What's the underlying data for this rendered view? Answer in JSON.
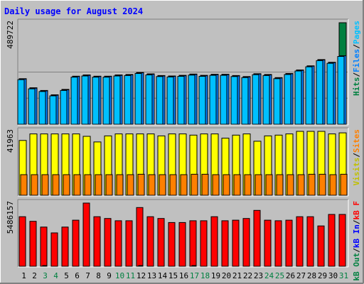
{
  "chart_data": {
    "type": "bar",
    "title": "Daily usage for August 2024",
    "days": [
      "1",
      "2",
      "3",
      "4",
      "5",
      "6",
      "7",
      "8",
      "9",
      "10",
      "11",
      "12",
      "13",
      "14",
      "15",
      "16",
      "17",
      "18",
      "19",
      "20",
      "21",
      "22",
      "23",
      "24",
      "25",
      "26",
      "27",
      "28",
      "29",
      "30",
      "31"
    ],
    "weekend_days": [
      "3",
      "4",
      "10",
      "11",
      "17",
      "18",
      "24",
      "25",
      "31"
    ],
    "colors": {
      "title": "#0000ff",
      "background": "#c0c0c0",
      "border_light": "#ffffff",
      "border_dark": "#808080",
      "pages": "#00c0ff",
      "files": "#0080ff",
      "hits": "#008040",
      "visits": "#ffff00",
      "sites": "#ff8000",
      "kbytes": "#ff0000",
      "kb_in": "#0000ff",
      "kb_out": "#008040",
      "weekday_label": "#000000",
      "weekend_label": "#008040",
      "gridline": "#808080"
    },
    "panels": [
      {
        "name": "hits-panel",
        "max_label": "489722",
        "max_value": 489722,
        "legend": [
          {
            "text": "Hits",
            "color": "#008040"
          },
          {
            "text": "/",
            "color": "#000000"
          },
          {
            "text": "Files",
            "color": "#0080ff"
          },
          {
            "text": "/",
            "color": "#000000"
          },
          {
            "text": "Pages",
            "color": "#00c0ff"
          }
        ],
        "series": [
          {
            "name": "Hits",
            "values": [
              220000,
              176000,
              163000,
              142000,
              168000,
              232000,
              238000,
              232000,
              232000,
              238000,
              240000,
              250000,
              243000,
              235000,
              233000,
              236000,
              242000,
              236000,
              241000,
              241000,
              235000,
              230000,
              244000,
              240000,
              225000,
              245000,
              262000,
              282000,
              312000,
              299000,
              489722
            ]
          },
          {
            "name": "Files",
            "values": [
              218000,
              174000,
              161000,
              140000,
              166000,
              230000,
              236000,
              230000,
              230000,
              236000,
              238000,
              248000,
              241000,
              233000,
              231000,
              234000,
              240000,
              234000,
              239000,
              239000,
              233000,
              228000,
              242000,
              238000,
              223000,
              243000,
              260000,
              280000,
              310000,
              297000,
              330000
            ]
          },
          {
            "name": "Pages",
            "values": [
              215000,
              171000,
              158000,
              137000,
              163000,
              227000,
              233000,
              227000,
              227000,
              233000,
              235000,
              245000,
              238000,
              230000,
              228000,
              231000,
              237000,
              231000,
              236000,
              236000,
              230000,
              225000,
              239000,
              235000,
              220000,
              240000,
              257000,
              277000,
              307000,
              294000,
              327000
            ]
          }
        ]
      },
      {
        "name": "visits-panel",
        "max_label": "41963",
        "max_value": 41963,
        "legend": [
          {
            "text": "Visits",
            "color": "#c0c000"
          },
          {
            "text": "/",
            "color": "#000000"
          },
          {
            "text": "Sites",
            "color": "#ff8000"
          }
        ],
        "series": [
          {
            "name": "Visits",
            "values": [
              36000,
              40300,
              40300,
              40300,
              40300,
              40300,
              38700,
              35000,
              39000,
              40300,
              40300,
              40300,
              40300,
              39000,
              40300,
              40300,
              39500,
              40300,
              40300,
              37500,
              39500,
              40300,
              35500,
              39000,
              39500,
              40300,
              41963,
              41963,
              41963,
              40300,
              41000
            ]
          },
          {
            "name": "Sites",
            "values": [
              13500,
              13500,
              13500,
              13500,
              13500,
              13500,
              13500,
              13500,
              13500,
              13500,
              13500,
              13800,
              13500,
              13500,
              13500,
              13500,
              13800,
              13800,
              13500,
              13500,
              13500,
              13500,
              13500,
              13500,
              13500,
              13500,
              13500,
              13800,
              13800,
              13500,
              13800
            ]
          }
        ]
      },
      {
        "name": "kbytes-panel",
        "max_label": "5486157",
        "max_value": 5486157,
        "legend": [
          {
            "text": "kB Out",
            "color": "#008040"
          },
          {
            "text": "/",
            "color": "#000000"
          },
          {
            "text": "kB In",
            "color": "#0000ff"
          },
          {
            "text": "/",
            "color": "#000000"
          },
          {
            "text": "kB F",
            "color": "#ff0000"
          }
        ],
        "series": [
          {
            "name": "kB F",
            "values": [
              4300000,
              3900000,
              3400000,
              2900000,
              3400000,
              4000000,
              5486157,
              4300000,
              4150000,
              3950000,
              3950000,
              5100000,
              4300000,
              4150000,
              3800000,
              3800000,
              3950000,
              3950000,
              4300000,
              3950000,
              4000000,
              4150000,
              4850000,
              4000000,
              3950000,
              4000000,
              4300000,
              4300000,
              3500000,
              4500000,
              4500000
            ]
          },
          {
            "name": "kB In",
            "values": [
              0,
              0,
              0,
              0,
              0,
              0,
              0,
              0,
              0,
              0,
              0,
              0,
              0,
              0,
              0,
              0,
              0,
              0,
              0,
              0,
              0,
              0,
              0,
              0,
              0,
              0,
              0,
              0,
              0,
              0,
              0
            ]
          },
          {
            "name": "kB Out",
            "values": [
              0,
              0,
              50000,
              0,
              0,
              0,
              0,
              0,
              0,
              0,
              0,
              50000,
              0,
              0,
              0,
              0,
              50000,
              0,
              0,
              0,
              0,
              0,
              0,
              0,
              0,
              0,
              0,
              0,
              0,
              0,
              0
            ]
          }
        ]
      }
    ]
  }
}
